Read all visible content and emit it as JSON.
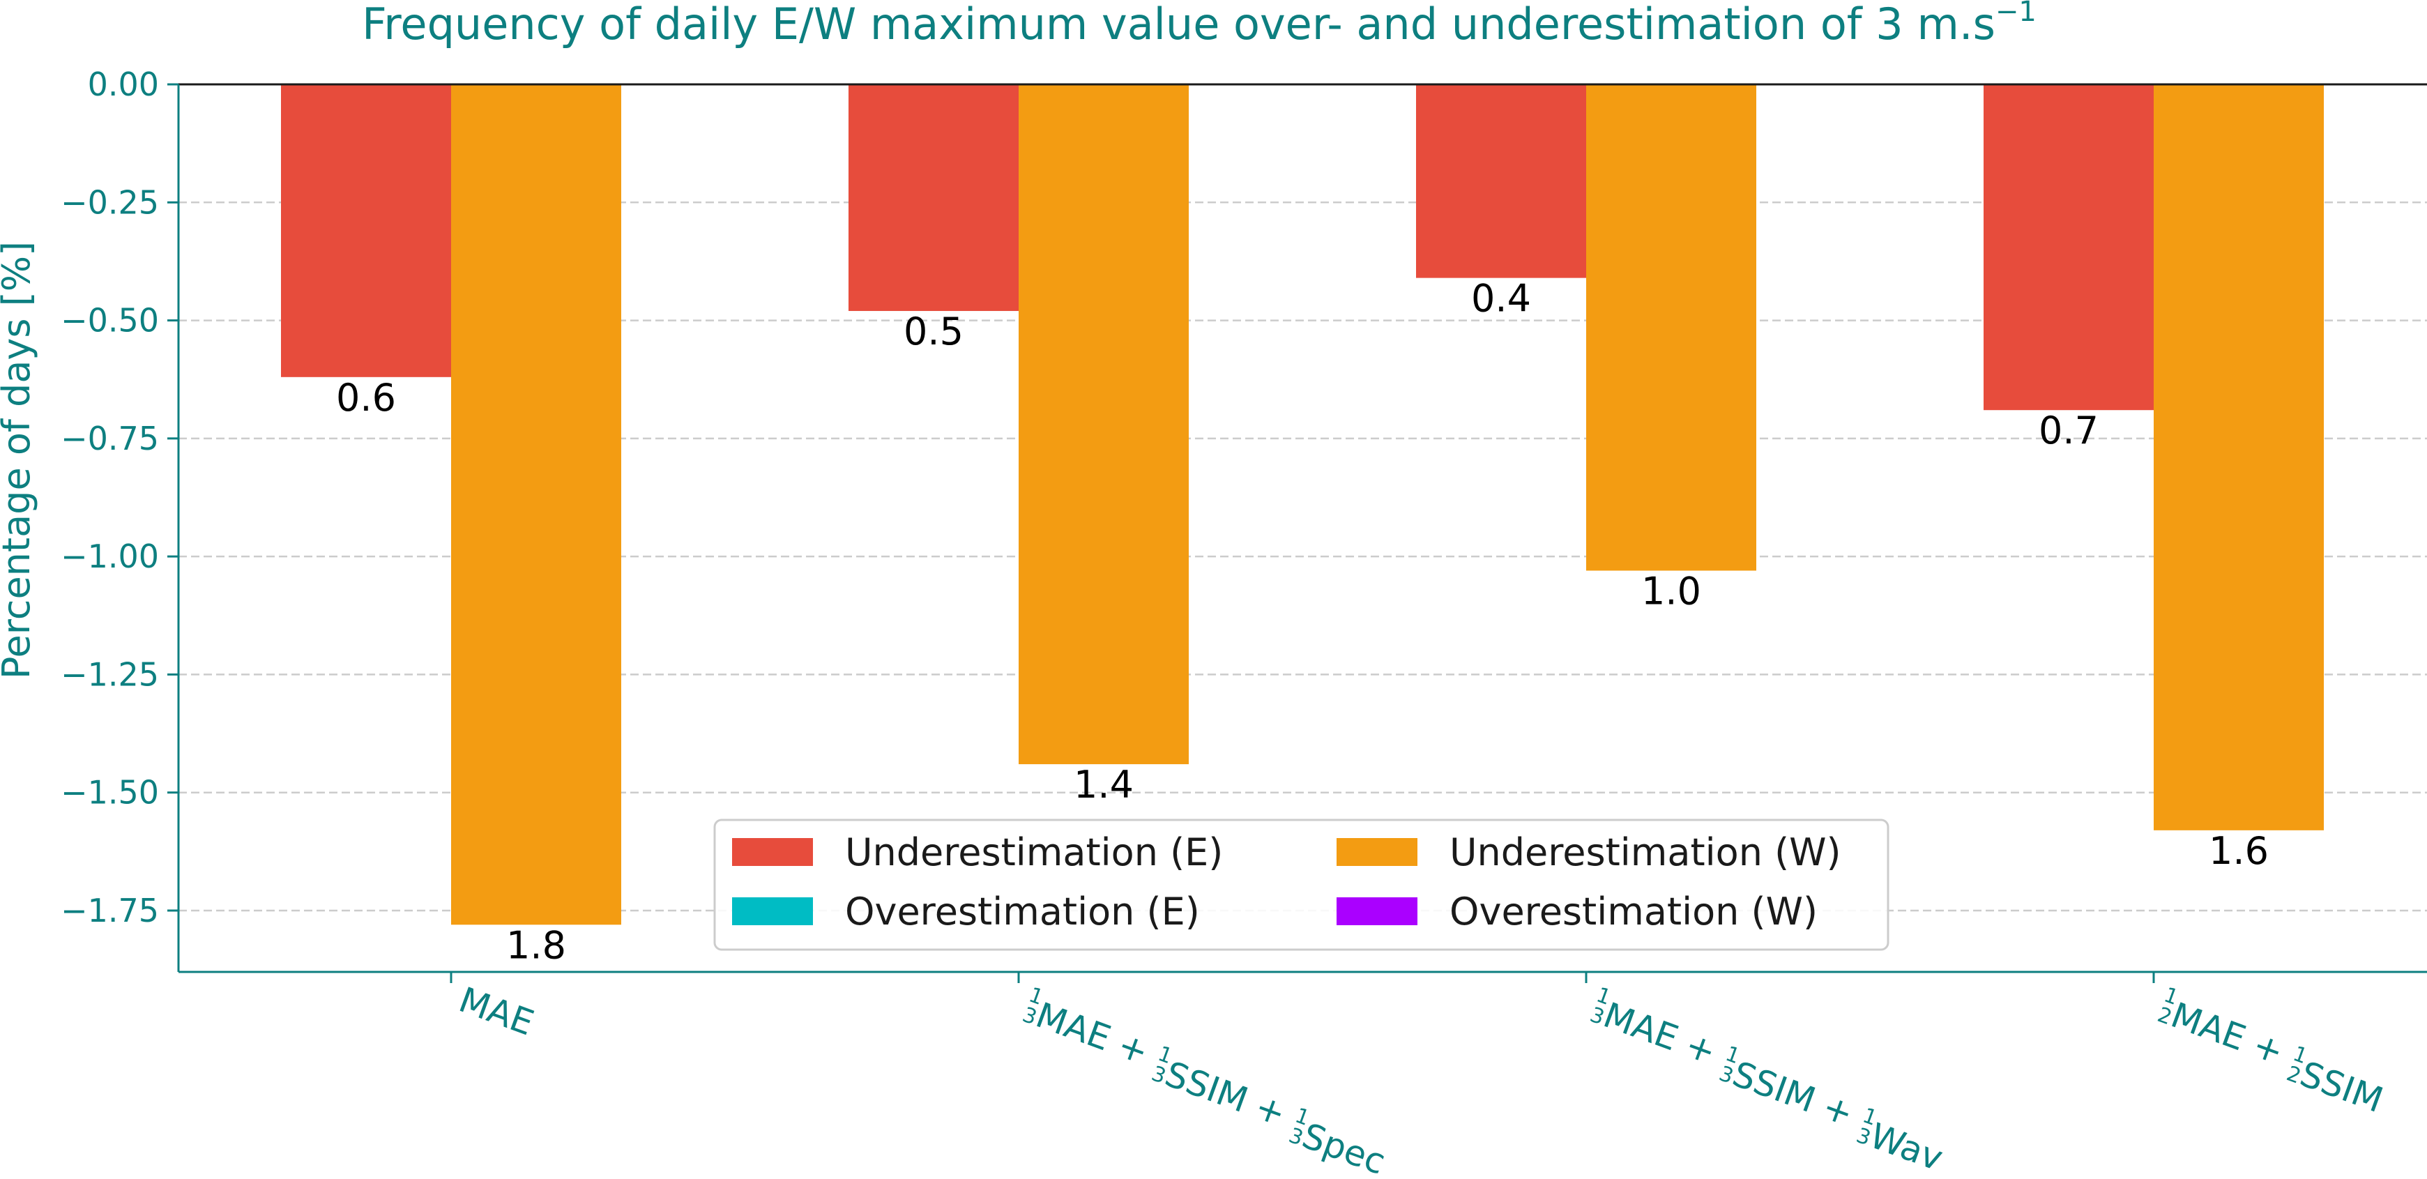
{
  "chart_data": {
    "type": "bar",
    "title": "Frequency of daily E/W maximum value over- and underestimation of 3 m.s",
    "title_superscript": "−1",
    "xlabel": "",
    "ylabel": "Percentage of days [%]",
    "ylim": [
      -1.88,
      0.0
    ],
    "yticks": [
      0.0,
      -0.25,
      -0.5,
      -0.75,
      -1.0,
      -1.25,
      -1.5,
      -1.75
    ],
    "ytick_labels": [
      "0.00",
      "−0.25",
      "−0.50",
      "−0.75",
      "−1.00",
      "−1.25",
      "−1.50",
      "−1.75"
    ],
    "grid": "horizontal dashed",
    "legend_position": "bottom-center",
    "categories": [
      {
        "label": "MAE",
        "parts": [
          {
            "text": "MAE"
          }
        ]
      },
      {
        "label": "⅓MAE + ⅓SSIM + ⅓Spec",
        "parts": [
          {
            "frac": [
              "1",
              "3"
            ]
          },
          {
            "text": "MAE + "
          },
          {
            "frac": [
              "1",
              "3"
            ]
          },
          {
            "text": "SSIM + "
          },
          {
            "frac": [
              "1",
              "3"
            ]
          },
          {
            "text": "Spec"
          }
        ]
      },
      {
        "label": "⅓MAE + ⅓SSIM + ⅓Wav",
        "parts": [
          {
            "frac": [
              "1",
              "3"
            ]
          },
          {
            "text": "MAE + "
          },
          {
            "frac": [
              "1",
              "3"
            ]
          },
          {
            "text": "SSIM + "
          },
          {
            "frac": [
              "1",
              "3"
            ]
          },
          {
            "text": "Wav"
          }
        ]
      },
      {
        "label": "½MAE + ½SSIM",
        "parts": [
          {
            "frac": [
              "1",
              "2"
            ]
          },
          {
            "text": "MAE + "
          },
          {
            "frac": [
              "1",
              "2"
            ]
          },
          {
            "text": "SSIM"
          }
        ]
      }
    ],
    "series": [
      {
        "name": "Underestimation (E)",
        "color": "#e74c3c",
        "values": [
          -0.62,
          -0.48,
          -0.41,
          -0.69
        ],
        "labels": [
          "0.6",
          "0.5",
          "0.4",
          "0.7"
        ]
      },
      {
        "name": "Underestimation (W)",
        "color": "#f39c12",
        "values": [
          -1.78,
          -1.44,
          -1.03,
          -1.58
        ],
        "labels": [
          "1.8",
          "1.4",
          "1.0",
          "1.6"
        ]
      },
      {
        "name": "Overestimation (E)",
        "color": "#00bcc4",
        "values": [
          0,
          0,
          0,
          0
        ],
        "labels": []
      },
      {
        "name": "Overestimation (W)",
        "color": "#aa00ff",
        "values": [
          0,
          0,
          0,
          0
        ],
        "labels": []
      }
    ],
    "legend_order": [
      0,
      1,
      2,
      3
    ]
  }
}
